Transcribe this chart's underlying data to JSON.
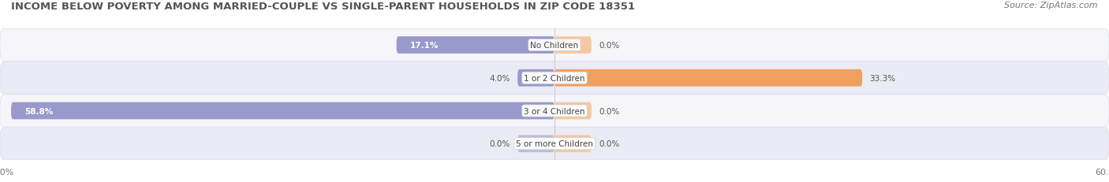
{
  "title": "INCOME BELOW POVERTY AMONG MARRIED-COUPLE VS SINGLE-PARENT HOUSEHOLDS IN ZIP CODE 18351",
  "source": "Source: ZipAtlas.com",
  "categories": [
    "No Children",
    "1 or 2 Children",
    "3 or 4 Children",
    "5 or more Children"
  ],
  "married_values": [
    17.1,
    4.0,
    58.8,
    0.0
  ],
  "single_values": [
    0.0,
    33.3,
    0.0,
    0.0
  ],
  "married_color": "#9999cc",
  "married_zero_color": "#bbbbdd",
  "single_color": "#f0a060",
  "single_zero_color": "#f5c8a0",
  "row_colors": [
    "#f5f5fa",
    "#ebebf5"
  ],
  "row_border_color": "#ddddee",
  "xlim": 60.0,
  "bar_height": 0.52,
  "zero_bar_width": 4.0,
  "title_fontsize": 9.5,
  "source_fontsize": 8,
  "label_fontsize": 7.5,
  "tick_fontsize": 8,
  "legend_fontsize": 8,
  "background_color": "#ffffff",
  "text_color": "#555555",
  "label_inside_color": "#ffffff",
  "label_outside_color": "#555555"
}
